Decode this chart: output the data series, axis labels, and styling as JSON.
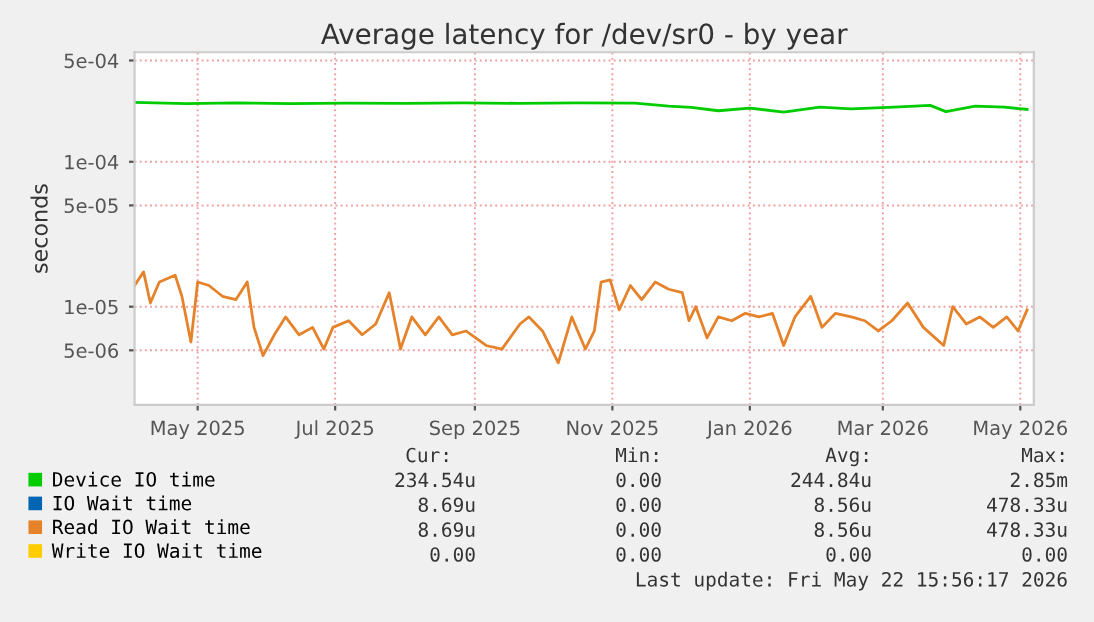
{
  "chart_data": {
    "type": "line",
    "title": "Average latency for /dev/sr0 - by year",
    "ylabel": "seconds",
    "log": "y",
    "ylim": [
      2.1e-06,
      0.00057
    ],
    "yticks": [
      {
        "value": 0.0005,
        "label": "5e-04"
      },
      {
        "value": 0.0001,
        "label": "1e-04"
      },
      {
        "value": 5e-05,
        "label": "5e-05"
      },
      {
        "value": 1e-05,
        "label": "1e-05"
      },
      {
        "value": 5e-06,
        "label": "5e-06"
      }
    ],
    "xlim": [
      "2025-04-17",
      "2026-05-21"
    ],
    "xticks": [
      {
        "value": "2025-05-15",
        "label": "May 2025"
      },
      {
        "value": "2025-07-15",
        "label": "Jul 2025"
      },
      {
        "value": "2025-09-15",
        "label": "Sep 2025"
      },
      {
        "value": "2025-11-15",
        "label": "Nov 2025"
      },
      {
        "value": "2026-01-15",
        "label": "Jan 2026"
      },
      {
        "value": "2026-03-15",
        "label": "Mar 2026"
      },
      {
        "value": "2026-05-15",
        "label": "May 2026"
      }
    ],
    "grid": true,
    "legend": "bottom",
    "x": [
      "2025-04-17",
      "2025-04-21",
      "2025-04-24",
      "2025-04-28",
      "2025-05-05",
      "2025-05-08",
      "2025-05-12",
      "2025-05-15",
      "2025-05-20",
      "2025-05-26",
      "2025-06-01",
      "2025-06-06",
      "2025-06-09",
      "2025-06-13",
      "2025-06-18",
      "2025-06-23",
      "2025-06-29",
      "2025-07-05",
      "2025-07-10",
      "2025-07-14",
      "2025-07-21",
      "2025-07-27",
      "2025-08-02",
      "2025-08-08",
      "2025-08-13",
      "2025-08-18",
      "2025-08-24",
      "2025-08-30",
      "2025-09-05",
      "2025-09-11",
      "2025-09-20",
      "2025-09-27",
      "2025-10-05",
      "2025-10-09",
      "2025-10-15",
      "2025-10-22",
      "2025-10-28",
      "2025-11-03",
      "2025-11-07",
      "2025-11-10",
      "2025-11-14",
      "2025-11-18",
      "2025-11-23",
      "2025-11-28",
      "2025-12-04",
      "2025-12-10",
      "2025-12-16",
      "2025-12-19",
      "2025-12-22",
      "2025-12-27",
      "2026-01-01",
      "2026-01-07",
      "2026-01-13",
      "2026-01-19",
      "2026-01-25",
      "2026-01-30",
      "2026-02-04",
      "2026-02-11",
      "2026-02-16",
      "2026-02-22",
      "2026-03-01",
      "2026-03-07",
      "2026-03-13",
      "2026-03-19",
      "2026-03-26",
      "2026-04-02",
      "2026-04-11",
      "2026-04-15",
      "2026-04-21",
      "2026-04-27",
      "2026-05-03",
      "2026-05-09",
      "2026-05-14",
      "2026-05-18"
    ],
    "series": [
      {
        "name": "Device IO time",
        "color": "#00cc00",
        "x": [
          "2025-04-17",
          "2025-05-10",
          "2025-06-01",
          "2025-06-25",
          "2025-07-20",
          "2025-08-15",
          "2025-09-10",
          "2025-10-05",
          "2025-10-30",
          "2025-11-25",
          "2025-12-10",
          "2025-12-20",
          "2026-01-01",
          "2026-01-15",
          "2026-01-30",
          "2026-02-15",
          "2026-03-01",
          "2026-03-20",
          "2026-04-05",
          "2026-04-12",
          "2026-04-25",
          "2026-05-08",
          "2026-05-18"
        ],
        "values": [
          0.000257,
          0.000252,
          0.000255,
          0.000252,
          0.000254,
          0.000253,
          0.000255,
          0.000253,
          0.000255,
          0.000254,
          0.000242,
          0.000237,
          0.000225,
          0.000235,
          0.00022,
          0.000238,
          0.000232,
          0.000238,
          0.000245,
          0.000222,
          0.000242,
          0.000238,
          0.00023
        ]
      },
      {
        "name": "IO Wait time",
        "color": "#0066b3",
        "values": [
          null,
          null,
          null,
          null,
          null,
          null,
          null,
          null,
          null,
          null,
          null,
          null,
          null,
          null,
          null,
          null,
          null,
          null,
          null,
          null,
          null,
          null,
          null,
          null,
          null,
          null,
          null,
          null,
          null,
          null,
          null,
          null,
          null,
          null,
          null,
          null,
          null,
          null,
          null,
          null,
          null,
          null,
          null,
          null,
          null,
          null,
          null,
          null,
          null,
          null,
          null,
          null,
          null,
          null,
          null,
          null,
          null,
          null,
          null,
          null,
          null,
          null,
          null,
          null,
          null,
          null,
          null,
          null,
          null,
          null,
          null,
          null,
          null,
          null
        ]
      },
      {
        "name": "Read IO Wait time",
        "color": "#e5822a",
        "values": [
          1.4e-05,
          1.74e-05,
          1.06e-05,
          1.48e-05,
          1.65e-05,
          1.18e-05,
          5.7e-06,
          1.48e-05,
          1.4e-05,
          1.18e-05,
          1.12e-05,
          1.48e-05,
          7.2e-06,
          4.6e-06,
          6.4e-06,
          8.5e-06,
          6.4e-06,
          7.2e-06,
          5.1e-06,
          7.2e-06,
          8e-06,
          6.4e-06,
          7.6e-06,
          1.25e-05,
          5.1e-06,
          8.5e-06,
          6.4e-06,
          8.5e-06,
          6.4e-06,
          6.8e-06,
          5.4e-06,
          5.1e-06,
          7.6e-06,
          8.5e-06,
          6.8e-06,
          4.1e-06,
          8.5e-06,
          5.1e-06,
          6.8e-06,
          1.48e-05,
          1.53e-05,
          9.5e-06,
          1.4e-05,
          1.12e-05,
          1.48e-05,
          1.32e-05,
          1.25e-05,
          8e-06,
          1e-05,
          6.1e-06,
          8.5e-06,
          8e-06,
          9e-06,
          8.5e-06,
          9e-06,
          5.4e-06,
          8.5e-06,
          1.18e-05,
          7.2e-06,
          9e-06,
          8.5e-06,
          8e-06,
          6.8e-06,
          8e-06,
          1.06e-05,
          7.2e-06,
          5.4e-06,
          1e-05,
          7.6e-06,
          8.5e-06,
          7.2e-06,
          8.5e-06,
          6.8e-06,
          9.5e-06
        ]
      },
      {
        "name": "Write IO Wait time",
        "color": "#ffcc00",
        "values": [
          null,
          null,
          null,
          null,
          null,
          null,
          null,
          null,
          null,
          null,
          null,
          null,
          null,
          null,
          null,
          null,
          null,
          null,
          null,
          null,
          null,
          null,
          null,
          null,
          null,
          null,
          null,
          null,
          null,
          null,
          null,
          null,
          null,
          null,
          null,
          null,
          null,
          null,
          null,
          null,
          null,
          null,
          null,
          null,
          null,
          null,
          null,
          null,
          null,
          null,
          null,
          null,
          null,
          null,
          null,
          null,
          null,
          null,
          null,
          null,
          null,
          null,
          null,
          null,
          null,
          null,
          null,
          null,
          null,
          null,
          null,
          null,
          null,
          null
        ]
      }
    ],
    "annotations": [
      "Cur:",
      "Min:",
      "Avg:",
      "Max:",
      "234.54u",
      "0.00",
      "244.84u",
      "2.85m",
      "8.69u",
      "0.00",
      "8.56u",
      "478.33u",
      "8.69u",
      "0.00",
      "8.56u",
      "478.33u",
      "0.00",
      "0.00",
      "0.00",
      "0.00",
      "Last update: Fri May 22 15:56:17 2026"
    ]
  }
}
